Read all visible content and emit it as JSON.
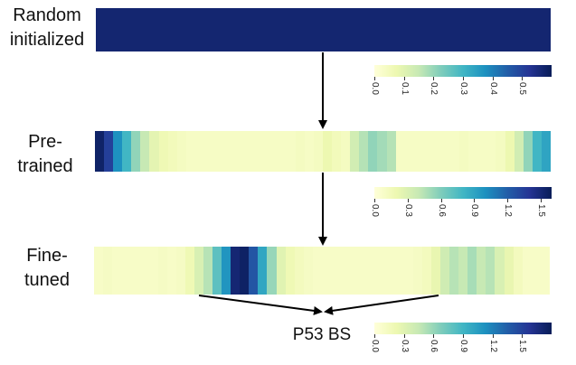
{
  "labels": {
    "random": [
      "Random",
      "initialized"
    ],
    "pretrained": [
      "Pre-",
      "trained"
    ],
    "finetuned": [
      "Fine-",
      "tuned"
    ],
    "binding_site": "P53 BS"
  },
  "colormap": [
    "#ffffd9",
    "#edf8b1",
    "#c7e9b4",
    "#7fcdbb",
    "#41b6c4",
    "#1d91c0",
    "#225ea8",
    "#253494",
    "#081d58"
  ],
  "heatmaps": [
    {
      "name": "random-initialized",
      "vmax": 0.6,
      "values": [
        0.57,
        0.57,
        0.57,
        0.57,
        0.57,
        0.57,
        0.57,
        0.57,
        0.57,
        0.57,
        0.57,
        0.57,
        0.57,
        0.57,
        0.57,
        0.57,
        0.57,
        0.57,
        0.57,
        0.57,
        0.57,
        0.57,
        0.57,
        0.57,
        0.57,
        0.57,
        0.57,
        0.57,
        0.57,
        0.57,
        0.57,
        0.57,
        0.57,
        0.57,
        0.57,
        0.57,
        0.57,
        0.57,
        0.57,
        0.57,
        0.57,
        0.57,
        0.57,
        0.57,
        0.57,
        0.57,
        0.57,
        0.57,
        0.57,
        0.57
      ],
      "colorbar_ticks": [
        "0.0",
        "0.1",
        "0.2",
        "0.3",
        "0.4",
        "0.5"
      ],
      "colorbar_tick_values": [
        0,
        0.1,
        0.2,
        0.3,
        0.4,
        0.5
      ]
    },
    {
      "name": "pre-trained",
      "vmax": 1.6,
      "values": [
        1.55,
        1.35,
        1.0,
        0.8,
        0.55,
        0.4,
        0.25,
        0.18,
        0.15,
        0.12,
        0.1,
        0.1,
        0.1,
        0.1,
        0.1,
        0.1,
        0.1,
        0.1,
        0.1,
        0.1,
        0.1,
        0.1,
        0.12,
        0.1,
        0.12,
        0.2,
        0.15,
        0.12,
        0.35,
        0.45,
        0.55,
        0.5,
        0.45,
        0.1,
        0.1,
        0.1,
        0.1,
        0.1,
        0.1,
        0.1,
        0.12,
        0.1,
        0.1,
        0.1,
        0.12,
        0.2,
        0.35,
        0.55,
        0.8,
        0.9
      ],
      "colorbar_ticks": [
        "0.0",
        "0.3",
        "0.6",
        "0.9",
        "1.2",
        "1.5"
      ],
      "colorbar_tick_values": [
        0,
        0.3,
        0.6,
        0.9,
        1.2,
        1.5
      ]
    },
    {
      "name": "fine-tuned",
      "vmax": 1.8,
      "values": [
        0.1,
        0.12,
        0.1,
        0.1,
        0.1,
        0.1,
        0.1,
        0.12,
        0.1,
        0.12,
        0.2,
        0.35,
        0.5,
        0.8,
        1.1,
        1.7,
        1.75,
        1.4,
        1.0,
        0.6,
        0.3,
        0.2,
        0.15,
        0.12,
        0.1,
        0.1,
        0.1,
        0.1,
        0.1,
        0.1,
        0.1,
        0.1,
        0.1,
        0.1,
        0.1,
        0.12,
        0.15,
        0.25,
        0.4,
        0.5,
        0.45,
        0.55,
        0.45,
        0.5,
        0.35,
        0.25,
        0.15,
        0.1,
        0.1,
        0.1
      ],
      "colorbar_ticks": [
        "0.0",
        "0.3",
        "0.6",
        "0.9",
        "1.2",
        "1.5"
      ],
      "colorbar_tick_values": [
        0,
        0.3,
        0.6,
        0.9,
        1.2,
        1.5
      ]
    }
  ]
}
